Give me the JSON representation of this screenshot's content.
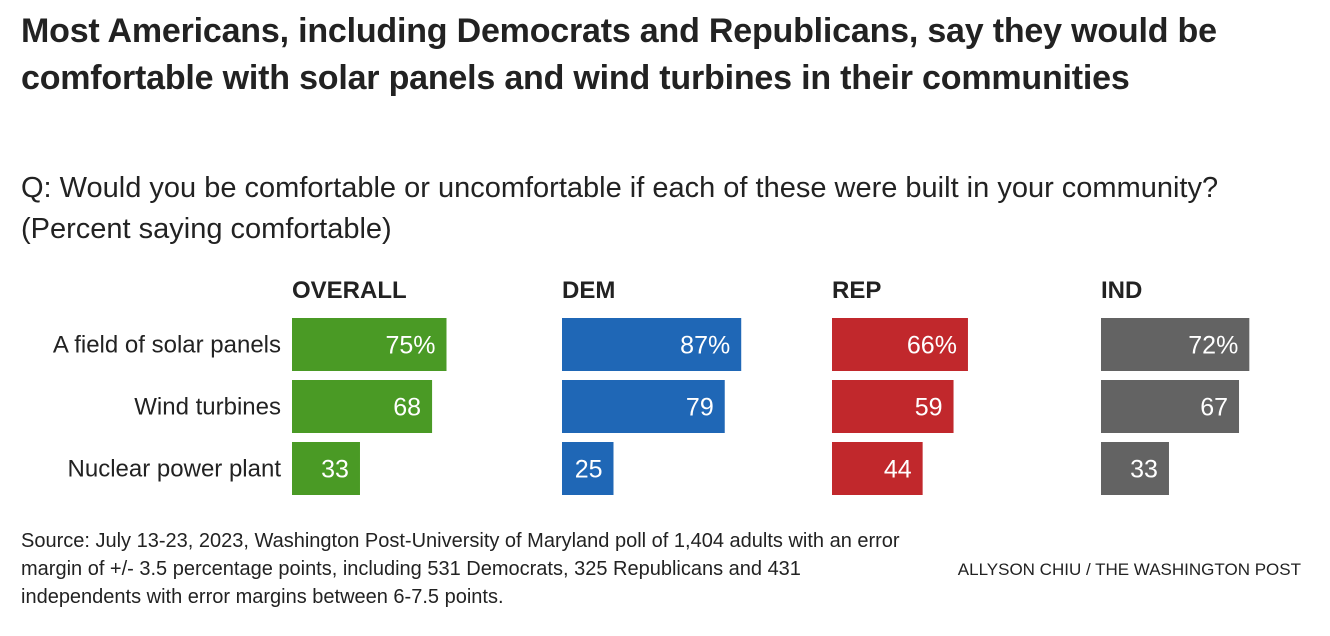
{
  "title": "Most Americans, including Democrats and Republicans, say they would be comfortable with solar panels and wind turbines in their communities",
  "subtitle": "Q: Would you be comfortable or uncomfortable if each of these were built in your community? (Percent saying comfortable)",
  "source": "Source: July 13-23, 2023, Washington Post-University of Maryland poll of 1,404 adults with an error margin of +/- 3.5 percentage points, including 531 Democrats, 325 Republicans and 431 independents with error margins between 6-7.5 points.",
  "credit": "ALLYSON CHIU / THE WASHINGTON POST",
  "chart_data": {
    "type": "bar",
    "orientation": "horizontal",
    "layout": "small-multiples",
    "categories": [
      "A field of solar panels",
      "Wind turbines",
      "Nuclear power plant"
    ],
    "xlim": [
      0,
      100
    ],
    "grid": false,
    "panels": [
      {
        "name": "OVERALL",
        "color": "#4a9a25",
        "values": [
          75,
          68,
          33
        ],
        "labels": [
          "75%",
          "68",
          "33"
        ]
      },
      {
        "name": "DEM",
        "color": "#1f67b6",
        "values": [
          87,
          79,
          25
        ],
        "labels": [
          "87%",
          "79",
          "25"
        ]
      },
      {
        "name": "REP",
        "color": "#c1282c",
        "values": [
          66,
          59,
          44
        ],
        "labels": [
          "66%",
          "59",
          "44"
        ]
      },
      {
        "name": "IND",
        "color": "#636363",
        "values": [
          72,
          67,
          33
        ],
        "labels": [
          "72%",
          "67",
          "33"
        ]
      }
    ]
  }
}
